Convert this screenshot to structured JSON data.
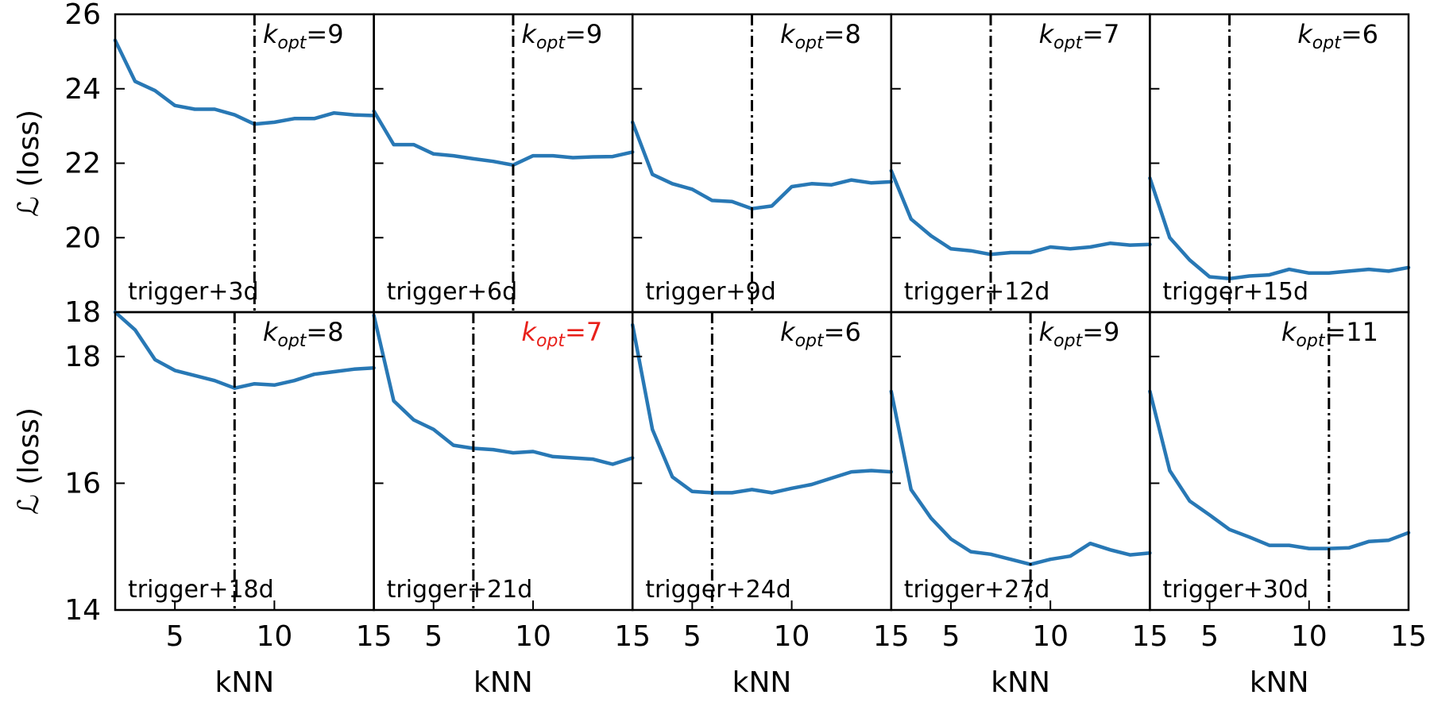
{
  "chart_data": {
    "type": "line",
    "layout": "2x5 grid of panels, shared axes per row",
    "xlabel": "kNN",
    "ylabel": "ℒ (loss)",
    "xlim": [
      2,
      15
    ],
    "xticks": [
      5,
      10,
      15
    ],
    "rows": [
      {
        "ylim": [
          18,
          26
        ],
        "yticks": [
          18,
          20,
          22,
          24,
          26
        ]
      },
      {
        "ylim": [
          14,
          18.7
        ],
        "yticks": [
          14,
          16,
          18
        ],
        "ytick_labels": [
          "14",
          "16",
          "18"
        ],
        "top_label": "18"
      }
    ],
    "line_color": "#2878b5",
    "vline_style": "black dash-dot",
    "x": [
      2,
      3,
      4,
      5,
      6,
      7,
      8,
      9,
      10,
      11,
      12,
      13,
      14,
      15
    ],
    "panels": [
      {
        "label": "trigger+3d",
        "k_opt": 9,
        "k_opt_color": "#000000",
        "row": 0,
        "values": [
          25.3,
          24.2,
          23.95,
          23.55,
          23.45,
          23.45,
          23.3,
          23.05,
          23.1,
          23.2,
          23.2,
          23.35,
          23.3,
          23.28
        ]
      },
      {
        "label": "trigger+6d",
        "k_opt": 9,
        "k_opt_color": "#000000",
        "row": 0,
        "values": [
          23.4,
          22.5,
          22.5,
          22.25,
          22.2,
          22.12,
          22.05,
          21.95,
          22.2,
          22.2,
          22.15,
          22.17,
          22.18,
          22.3
        ]
      },
      {
        "label": "trigger+9d",
        "k_opt": 8,
        "k_opt_color": "#000000",
        "row": 0,
        "values": [
          23.1,
          21.7,
          21.45,
          21.3,
          21.0,
          20.97,
          20.78,
          20.85,
          21.37,
          21.45,
          21.42,
          21.55,
          21.47,
          21.5
        ]
      },
      {
        "label": "trigger+12d",
        "k_opt": 7,
        "k_opt_color": "#000000",
        "row": 0,
        "values": [
          21.8,
          20.5,
          20.05,
          19.7,
          19.65,
          19.55,
          19.6,
          19.6,
          19.75,
          19.7,
          19.75,
          19.85,
          19.8,
          19.82
        ]
      },
      {
        "label": "trigger+15d",
        "k_opt": 6,
        "k_opt_color": "#000000",
        "row": 0,
        "values": [
          21.6,
          20.0,
          19.4,
          18.95,
          18.9,
          18.97,
          19.0,
          19.15,
          19.05,
          19.05,
          19.1,
          19.15,
          19.1,
          19.2
        ]
      },
      {
        "label": "trigger+18d",
        "k_opt": 8,
        "k_opt_color": "#000000",
        "row": 1,
        "values": [
          18.7,
          18.42,
          17.95,
          17.78,
          17.7,
          17.62,
          17.5,
          17.57,
          17.55,
          17.62,
          17.72,
          17.76,
          17.8,
          17.82
        ]
      },
      {
        "label": "trigger+21d",
        "k_opt": 7,
        "k_opt_color": "#e8201a",
        "row": 1,
        "values": [
          18.65,
          17.3,
          17.0,
          16.85,
          16.6,
          16.55,
          16.53,
          16.48,
          16.5,
          16.42,
          16.4,
          16.38,
          16.3,
          16.4
        ]
      },
      {
        "label": "trigger+24d",
        "k_opt": 6,
        "k_opt_color": "#000000",
        "row": 1,
        "values": [
          18.5,
          16.85,
          16.1,
          15.87,
          15.85,
          15.85,
          15.9,
          15.85,
          15.92,
          15.98,
          16.08,
          16.18,
          16.2,
          16.18
        ]
      },
      {
        "label": "trigger+27d",
        "k_opt": 9,
        "k_opt_color": "#000000",
        "row": 1,
        "values": [
          17.45,
          15.9,
          15.45,
          15.12,
          14.92,
          14.88,
          14.8,
          14.72,
          14.8,
          14.85,
          15.05,
          14.95,
          14.87,
          14.9
        ]
      },
      {
        "label": "trigger+30d",
        "k_opt": 11,
        "k_opt_color": "#000000",
        "row": 1,
        "values": [
          17.45,
          16.2,
          15.72,
          15.5,
          15.27,
          15.15,
          15.02,
          15.02,
          14.97,
          14.97,
          14.98,
          15.08,
          15.1,
          15.22
        ]
      }
    ]
  }
}
